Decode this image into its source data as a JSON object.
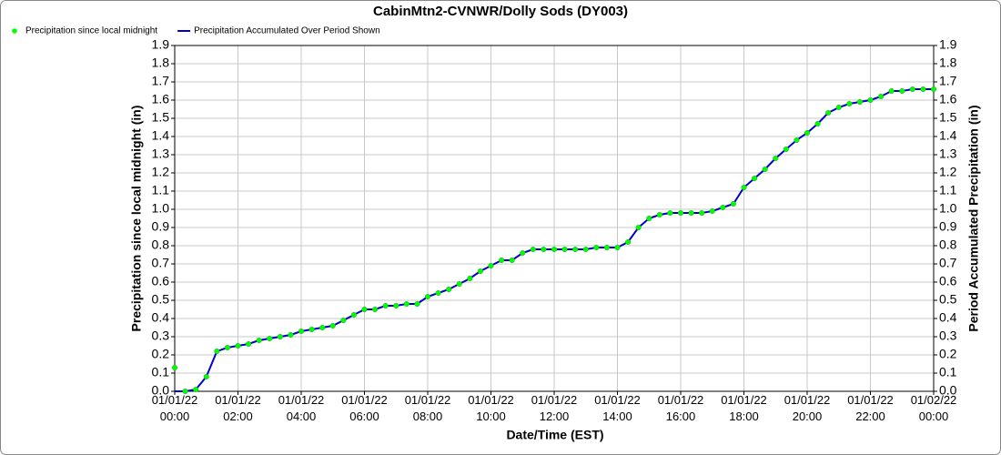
{
  "chart_data": {
    "type": "line",
    "title": "CabinMtn2-CVNWR/Dolly Sods (DY003)",
    "x_label": "Date/Time (EST)",
    "y_label": "Precipitation since local midnight (in)",
    "y2_label": "Period Accumulated Precipitation (in)",
    "legend": "top-left",
    "grid": true,
    "x": [
      "01/01/22 00:00",
      "01/01/22 00:20",
      "01/01/22 00:40",
      "01/01/22 01:00",
      "01/01/22 01:20",
      "01/01/22 01:40",
      "01/01/22 02:00",
      "01/01/22 02:20",
      "01/01/22 02:40",
      "01/01/22 03:00",
      "01/01/22 03:20",
      "01/01/22 03:40",
      "01/01/22 04:00",
      "01/01/22 04:20",
      "01/01/22 04:40",
      "01/01/22 05:00",
      "01/01/22 05:20",
      "01/01/22 05:40",
      "01/01/22 06:00",
      "01/01/22 06:20",
      "01/01/22 06:40",
      "01/01/22 07:00",
      "01/01/22 07:20",
      "01/01/22 07:40",
      "01/01/22 08:00",
      "01/01/22 08:20",
      "01/01/22 08:40",
      "01/01/22 09:00",
      "01/01/22 09:20",
      "01/01/22 09:40",
      "01/01/22 10:00",
      "01/01/22 10:20",
      "01/01/22 10:40",
      "01/01/22 11:00",
      "01/01/22 11:20",
      "01/01/22 11:40",
      "01/01/22 12:00",
      "01/01/22 12:20",
      "01/01/22 12:40",
      "01/01/22 13:00",
      "01/01/22 13:20",
      "01/01/22 13:40",
      "01/01/22 14:00",
      "01/01/22 14:20",
      "01/01/22 14:40",
      "01/01/22 15:00",
      "01/01/22 15:20",
      "01/01/22 15:40",
      "01/01/22 16:00",
      "01/01/22 16:20",
      "01/01/22 16:40",
      "01/01/22 17:00",
      "01/01/22 17:20",
      "01/01/22 17:40",
      "01/01/22 18:00",
      "01/01/22 18:20",
      "01/01/22 18:40",
      "01/01/22 19:00",
      "01/01/22 19:20",
      "01/01/22 19:40",
      "01/01/22 20:00",
      "01/01/22 20:20",
      "01/01/22 20:40",
      "01/01/22 21:00",
      "01/01/22 21:20",
      "01/01/22 21:40",
      "01/01/22 22:00",
      "01/01/22 22:20",
      "01/01/22 22:40",
      "01/01/22 23:00",
      "01/01/22 23:20",
      "01/01/22 23:40",
      "01/02/22 00:00"
    ],
    "series": [
      {
        "name": "Precipitation since local midnight",
        "color": "#00ff00",
        "axis": "y",
        "marker": "dot",
        "values": [
          0.13,
          0,
          0.01,
          0.08,
          0.22,
          0.24,
          0.25,
          0.26,
          0.28,
          0.29,
          0.3,
          0.31,
          0.33,
          0.34,
          0.35,
          0.36,
          0.39,
          0.42,
          0.45,
          0.45,
          0.47,
          0.47,
          0.48,
          0.48,
          0.52,
          0.54,
          0.56,
          0.59,
          0.62,
          0.66,
          0.69,
          0.72,
          0.72,
          0.76,
          0.78,
          0.78,
          0.78,
          0.78,
          0.78,
          0.78,
          0.79,
          0.79,
          0.79,
          0.82,
          0.9,
          0.95,
          0.97,
          0.98,
          0.98,
          0.98,
          0.98,
          0.99,
          1.01,
          1.03,
          1.12,
          1.17,
          1.22,
          1.28,
          1.33,
          1.38,
          1.42,
          1.47,
          1.53,
          1.56,
          1.58,
          1.59,
          1.6,
          1.62,
          1.65,
          1.65,
          1.66,
          1.66,
          1.66
        ]
      },
      {
        "name": "Precipitation Accumulated Over Period Shown",
        "color": "#0000cc",
        "axis": "y2",
        "marker": "line",
        "values": [
          0,
          0,
          0.01,
          0.08,
          0.22,
          0.24,
          0.25,
          0.26,
          0.28,
          0.29,
          0.3,
          0.31,
          0.33,
          0.34,
          0.35,
          0.36,
          0.39,
          0.42,
          0.45,
          0.45,
          0.47,
          0.47,
          0.48,
          0.48,
          0.52,
          0.54,
          0.56,
          0.59,
          0.62,
          0.66,
          0.69,
          0.72,
          0.72,
          0.76,
          0.78,
          0.78,
          0.78,
          0.78,
          0.78,
          0.78,
          0.79,
          0.79,
          0.79,
          0.82,
          0.9,
          0.95,
          0.97,
          0.98,
          0.98,
          0.98,
          0.98,
          0.99,
          1.01,
          1.03,
          1.12,
          1.17,
          1.22,
          1.28,
          1.33,
          1.38,
          1.42,
          1.47,
          1.53,
          1.56,
          1.58,
          1.59,
          1.6,
          1.62,
          1.65,
          1.65,
          1.66,
          1.66,
          1.66
        ]
      }
    ],
    "xlim": [
      "01/01/22 00:00",
      "01/02/22 00:00"
    ],
    "xticks": [
      "01/01/22 00:00",
      "01/01/22 02:00",
      "01/01/22 04:00",
      "01/01/22 06:00",
      "01/01/22 08:00",
      "01/01/22 10:00",
      "01/01/22 12:00",
      "01/01/22 14:00",
      "01/01/22 16:00",
      "01/01/22 18:00",
      "01/01/22 20:00",
      "01/01/22 22:00",
      "01/02/22 00:00"
    ],
    "ylim": [
      0,
      1.9
    ],
    "yticks": [
      {
        "value": 0,
        "label": "0.0"
      },
      0.1,
      0.2,
      0.3,
      0.4,
      0.5,
      0.6,
      0.7,
      0.8,
      0.9,
      {
        "value": 1,
        "label": "1.0"
      },
      1.1,
      1.2,
      1.3,
      1.4,
      1.5,
      1.6,
      1.7,
      1.8,
      1.9
    ],
    "y2lim": [
      0,
      1.9
    ],
    "y2ticks": [
      {
        "value": 0,
        "label": "0.0"
      },
      0.1,
      0.2,
      0.3,
      0.4,
      0.5,
      0.6,
      0.7,
      0.8,
      0.9,
      {
        "value": 1,
        "label": "1.0"
      },
      1.1,
      1.2,
      1.3,
      1.4,
      1.5,
      1.6,
      1.7,
      1.8,
      1.9
    ]
  }
}
